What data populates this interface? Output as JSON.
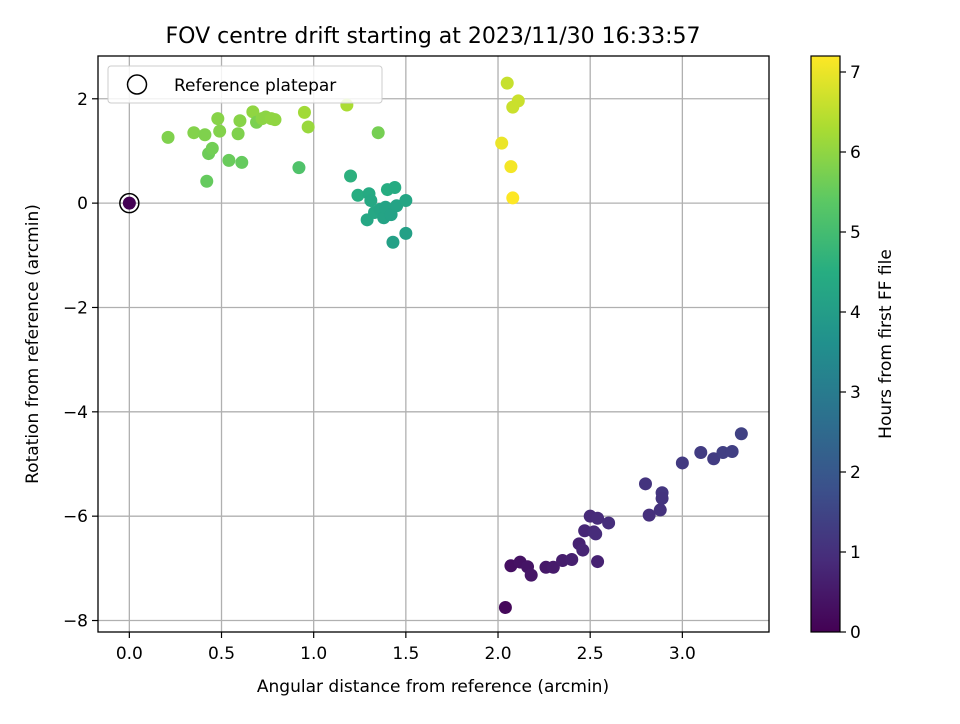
{
  "chart_data": {
    "type": "scatter",
    "title": "FOV centre drift starting at 2023/11/30 16:33:57",
    "xlabel": "Angular distance from reference (arcmin)",
    "ylabel": "Rotation from reference (arcmin)",
    "xlim": [
      -0.17,
      3.47
    ],
    "ylim": [
      -8.22,
      2.82
    ],
    "xticks": [
      0.0,
      0.5,
      1.0,
      1.5,
      2.0,
      2.5,
      3.0
    ],
    "xtick_labels": [
      "0.0",
      "0.5",
      "1.0",
      "1.5",
      "2.0",
      "2.5",
      "3.0"
    ],
    "yticks": [
      2,
      0,
      -2,
      -4,
      -6,
      -8
    ],
    "ytick_labels": [
      "2",
      "0",
      "−2",
      "−4",
      "−6",
      "−8"
    ],
    "grid": true,
    "legend": {
      "position": "top-left",
      "entries": [
        "Reference platepar"
      ]
    },
    "colorbar": {
      "label": "Hours from first FF file",
      "colormap": "viridis",
      "range": [
        0,
        7.2
      ],
      "ticks": [
        0,
        1,
        2,
        3,
        4,
        5,
        6,
        7
      ],
      "tick_labels": [
        "0",
        "1",
        "2",
        "3",
        "4",
        "5",
        "6",
        "7"
      ]
    },
    "reference_point": {
      "x": 0.0,
      "y": 0.0
    },
    "series": [
      {
        "points": [
          {
            "x": 0.0,
            "y": 0.0,
            "hours": 0.0
          },
          {
            "x": 2.04,
            "y": -7.75,
            "hours": 0.15
          },
          {
            "x": 2.07,
            "y": -6.95,
            "hours": 0.3
          },
          {
            "x": 2.12,
            "y": -6.88,
            "hours": 0.35
          },
          {
            "x": 2.16,
            "y": -6.97,
            "hours": 0.4
          },
          {
            "x": 2.18,
            "y": -7.13,
            "hours": 0.45
          },
          {
            "x": 2.26,
            "y": -6.98,
            "hours": 0.5
          },
          {
            "x": 2.3,
            "y": -6.98,
            "hours": 0.55
          },
          {
            "x": 2.35,
            "y": -6.85,
            "hours": 0.6
          },
          {
            "x": 2.4,
            "y": -6.83,
            "hours": 0.65
          },
          {
            "x": 2.44,
            "y": -6.53,
            "hours": 0.7
          },
          {
            "x": 2.46,
            "y": -6.65,
            "hours": 0.75
          },
          {
            "x": 2.47,
            "y": -6.28,
            "hours": 0.8
          },
          {
            "x": 2.5,
            "y": -6.0,
            "hours": 0.85
          },
          {
            "x": 2.52,
            "y": -6.3,
            "hours": 0.85
          },
          {
            "x": 2.53,
            "y": -6.34,
            "hours": 0.9
          },
          {
            "x": 2.54,
            "y": -6.04,
            "hours": 0.9
          },
          {
            "x": 2.54,
            "y": -6.87,
            "hours": 0.7
          },
          {
            "x": 2.6,
            "y": -6.13,
            "hours": 0.95
          },
          {
            "x": 2.8,
            "y": -5.38,
            "hours": 1.1
          },
          {
            "x": 2.82,
            "y": -5.98,
            "hours": 1.0
          },
          {
            "x": 2.88,
            "y": -5.88,
            "hours": 1.05
          },
          {
            "x": 2.89,
            "y": -5.55,
            "hours": 1.15
          },
          {
            "x": 2.89,
            "y": -5.66,
            "hours": 1.1
          },
          {
            "x": 3.0,
            "y": -4.98,
            "hours": 1.25
          },
          {
            "x": 3.1,
            "y": -4.78,
            "hours": 1.3
          },
          {
            "x": 3.17,
            "y": -4.9,
            "hours": 1.3
          },
          {
            "x": 3.22,
            "y": -4.78,
            "hours": 1.35
          },
          {
            "x": 3.27,
            "y": -4.76,
            "hours": 1.35
          },
          {
            "x": 3.32,
            "y": -4.42,
            "hours": 1.4
          },
          {
            "x": 1.2,
            "y": 0.52,
            "hours": 4.6
          },
          {
            "x": 1.24,
            "y": 0.15,
            "hours": 4.5
          },
          {
            "x": 1.29,
            "y": -0.32,
            "hours": 4.3
          },
          {
            "x": 1.3,
            "y": 0.18,
            "hours": 4.4
          },
          {
            "x": 1.31,
            "y": 0.05,
            "hours": 4.35
          },
          {
            "x": 1.33,
            "y": -0.18,
            "hours": 4.3
          },
          {
            "x": 1.36,
            "y": -0.12,
            "hours": 4.25
          },
          {
            "x": 1.38,
            "y": -0.28,
            "hours": 4.2
          },
          {
            "x": 1.39,
            "y": -0.08,
            "hours": 4.2
          },
          {
            "x": 1.4,
            "y": 0.26,
            "hours": 4.5
          },
          {
            "x": 1.42,
            "y": -0.22,
            "hours": 4.15
          },
          {
            "x": 1.43,
            "y": -0.75,
            "hours": 4.1
          },
          {
            "x": 1.44,
            "y": 0.3,
            "hours": 4.45
          },
          {
            "x": 1.45,
            "y": -0.05,
            "hours": 4.2
          },
          {
            "x": 1.5,
            "y": 0.05,
            "hours": 4.25
          },
          {
            "x": 1.5,
            "y": -0.58,
            "hours": 4.1
          },
          {
            "x": 0.21,
            "y": 1.26,
            "hours": 5.8
          },
          {
            "x": 0.35,
            "y": 1.35,
            "hours": 5.85
          },
          {
            "x": 0.41,
            "y": 1.31,
            "hours": 5.8
          },
          {
            "x": 0.42,
            "y": 0.42,
            "hours": 5.5
          },
          {
            "x": 0.43,
            "y": 0.95,
            "hours": 5.6
          },
          {
            "x": 0.45,
            "y": 1.05,
            "hours": 5.65
          },
          {
            "x": 0.48,
            "y": 1.62,
            "hours": 5.9
          },
          {
            "x": 0.49,
            "y": 1.38,
            "hours": 5.85
          },
          {
            "x": 0.54,
            "y": 0.82,
            "hours": 5.55
          },
          {
            "x": 0.59,
            "y": 1.33,
            "hours": 5.8
          },
          {
            "x": 0.6,
            "y": 1.58,
            "hours": 5.9
          },
          {
            "x": 0.61,
            "y": 0.78,
            "hours": 5.5
          },
          {
            "x": 0.67,
            "y": 1.75,
            "hours": 6.0
          },
          {
            "x": 0.69,
            "y": 1.55,
            "hours": 5.75
          },
          {
            "x": 0.72,
            "y": 1.62,
            "hours": 5.95
          },
          {
            "x": 0.74,
            "y": 1.65,
            "hours": 5.95
          },
          {
            "x": 0.77,
            "y": 1.62,
            "hours": 6.0
          },
          {
            "x": 0.79,
            "y": 1.6,
            "hours": 6.0
          },
          {
            "x": 0.92,
            "y": 0.68,
            "hours": 5.2
          },
          {
            "x": 0.95,
            "y": 1.74,
            "hours": 6.2
          },
          {
            "x": 0.97,
            "y": 1.46,
            "hours": 6.1
          },
          {
            "x": 1.18,
            "y": 1.88,
            "hours": 6.3
          },
          {
            "x": 1.35,
            "y": 1.35,
            "hours": 5.7
          },
          {
            "x": 2.02,
            "y": 1.15,
            "hours": 7.0
          },
          {
            "x": 2.05,
            "y": 2.3,
            "hours": 6.6
          },
          {
            "x": 2.07,
            "y": 0.7,
            "hours": 7.1
          },
          {
            "x": 2.08,
            "y": 1.84,
            "hours": 6.65
          },
          {
            "x": 2.08,
            "y": 0.1,
            "hours": 7.2
          },
          {
            "x": 2.11,
            "y": 1.96,
            "hours": 6.65
          }
        ]
      }
    ]
  }
}
